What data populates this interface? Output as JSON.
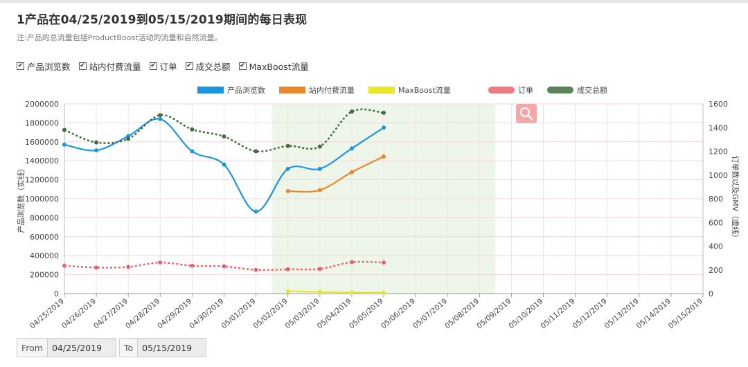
{
  "header": {
    "title": "1产品在04/25/2019到05/15/2019期间的每日表现",
    "note": "注:产品的总流量包括ProductBoost活动的流量和自然流量。"
  },
  "filters": [
    {
      "label": "产品浏览数",
      "checked": true
    },
    {
      "label": "站内付费流量",
      "checked": true
    },
    {
      "label": "订单",
      "checked": true
    },
    {
      "label": "成交总额",
      "checked": true
    },
    {
      "label": "MaxBoost流量",
      "checked": true
    }
  ],
  "date_range": {
    "from_label": "From",
    "from_value": "04/25/2019",
    "to_label": "To",
    "to_value": "05/15/2019"
  },
  "chart_data": {
    "type": "line",
    "categories": [
      "04/25/2019",
      "04/26/2019",
      "04/27/2019",
      "04/28/2019",
      "04/29/2019",
      "04/30/2019",
      "05/01/2019",
      "05/02/2019",
      "05/03/2019",
      "05/04/2019",
      "05/05/2019",
      "05/06/2019",
      "05/07/2019",
      "05/08/2019",
      "05/09/2019",
      "05/10/2019",
      "05/11/2019",
      "05/12/2019",
      "05/13/2019",
      "05/14/2019",
      "05/15/2019"
    ],
    "y_left": {
      "label": "产品浏览数（实线）",
      "min": 0,
      "max": 2000000,
      "ticks": [
        "0",
        "200000",
        "400000",
        "600000",
        "800000",
        "1000000",
        "1200000",
        "1400000",
        "1600000",
        "1800000",
        "2000000"
      ]
    },
    "y_right": {
      "label": "订单数以及GMV（虚线）",
      "min": 0,
      "max": 1600,
      "ticks": [
        "0",
        "200",
        "400",
        "600",
        "800",
        "1000",
        "1200",
        "1400",
        "1600"
      ]
    },
    "shaded_range": [
      "05/02/2019",
      "05/09/2019"
    ],
    "grid": true,
    "legend_position": "top-center",
    "series": [
      {
        "name": "产品浏览数",
        "axis": "left",
        "style": "solid",
        "color": "#1a96e0",
        "values": [
          1570000,
          1510000,
          1660000,
          1840000,
          1500000,
          1360000,
          865000,
          1315000,
          1315000,
          1530000,
          1750000,
          null,
          null,
          null,
          null,
          null,
          null,
          null,
          null,
          null,
          null
        ]
      },
      {
        "name": "站内付费流量",
        "axis": "left",
        "style": "solid",
        "color": "#e8892a",
        "values": [
          null,
          null,
          null,
          null,
          null,
          null,
          null,
          1080000,
          1090000,
          1280000,
          1445000,
          null,
          null,
          null,
          null,
          null,
          null,
          null,
          null,
          null,
          null
        ]
      },
      {
        "name": "MaxBoost流量",
        "axis": "left",
        "style": "solid",
        "color": "#e8e82a",
        "values": [
          null,
          null,
          null,
          null,
          null,
          null,
          null,
          25000,
          18000,
          12000,
          10000,
          null,
          null,
          null,
          null,
          null,
          null,
          null,
          null,
          null,
          null
        ]
      },
      {
        "name": "订单",
        "axis": "right",
        "style": "dashed",
        "color": "#e8636c",
        "values": [
          235,
          220,
          225,
          262,
          235,
          230,
          200,
          205,
          208,
          265,
          262,
          null,
          null,
          null,
          null,
          null,
          null,
          null,
          null,
          null,
          null
        ]
      },
      {
        "name": "成交总额",
        "axis": "right",
        "style": "dashed",
        "color": "#3e6e3c",
        "values": [
          1380,
          1275,
          1305,
          1505,
          1385,
          1325,
          1200,
          1245,
          1240,
          1535,
          1525,
          null,
          null,
          null,
          null,
          null,
          null,
          null,
          null,
          null,
          null
        ]
      }
    ]
  }
}
